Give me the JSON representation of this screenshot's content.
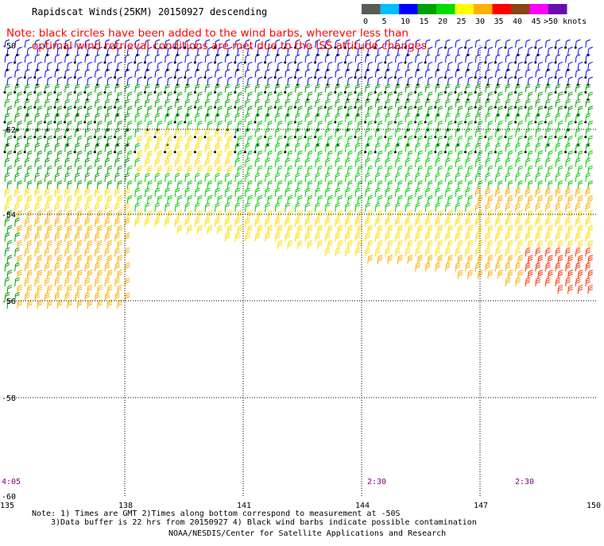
{
  "title": "Rapidscat Winds(25KM) 20150927 descending",
  "notice": {
    "line1": "Note: black circles have been added to the wind barbs, wherever less than",
    "line2": "optimal wind retrieval conditions are met due to the ISS attitude changes."
  },
  "legend": {
    "labels": [
      "0",
      "5",
      "10",
      "15",
      "20",
      "25",
      "30",
      "35",
      "40",
      "45",
      ">50 knots"
    ],
    "colors": [
      "#5a5a5a",
      "#00bfff",
      "#0000ff",
      "#00a000",
      "#00dd00",
      "#ffff00",
      "#ffb000",
      "#ff0000",
      "#8b4513",
      "#ff00ff",
      "#6a0dad"
    ]
  },
  "map": {
    "lat_labels": [
      "-50",
      "-52",
      "-54",
      "-56",
      "-58",
      "-60"
    ],
    "lon_labels": [
      "135",
      "138",
      "141",
      "144",
      "147",
      "150"
    ],
    "time_labels": [
      "4:05",
      "2:30",
      "2:30"
    ]
  },
  "footer": {
    "line1": "Note: 1) Times are GMT 2)Times along bottom correspond to measurement at -50S",
    "line2": "3)Data buffer is 22 hrs from 20150927 4) Black wind barbs indicate possible contamination",
    "line3": "NOAA/NESDIS/Center for Satellite Applications and Research"
  }
}
